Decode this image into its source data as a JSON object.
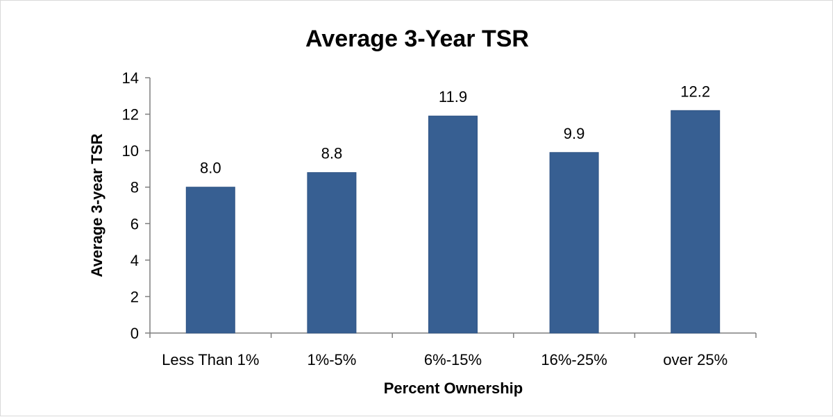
{
  "chart_data": {
    "type": "bar",
    "title": "Average 3-Year TSR",
    "xlabel": "Percent Ownership",
    "ylabel": "Average 3-year TSR",
    "categories": [
      "Less Than 1%",
      "1%-5%",
      "6%-15%",
      "16%-25%",
      "over 25%"
    ],
    "values": [
      8.0,
      8.8,
      11.9,
      9.9,
      12.2
    ],
    "data_labels": [
      "8.0",
      "8.8",
      "11.9",
      "9.9",
      "12.2"
    ],
    "ylim": [
      0,
      14
    ],
    "yticks": [
      0,
      2,
      4,
      6,
      8,
      10,
      12,
      14
    ],
    "grid": false,
    "legend": "none",
    "bar_color": "#375F92"
  }
}
